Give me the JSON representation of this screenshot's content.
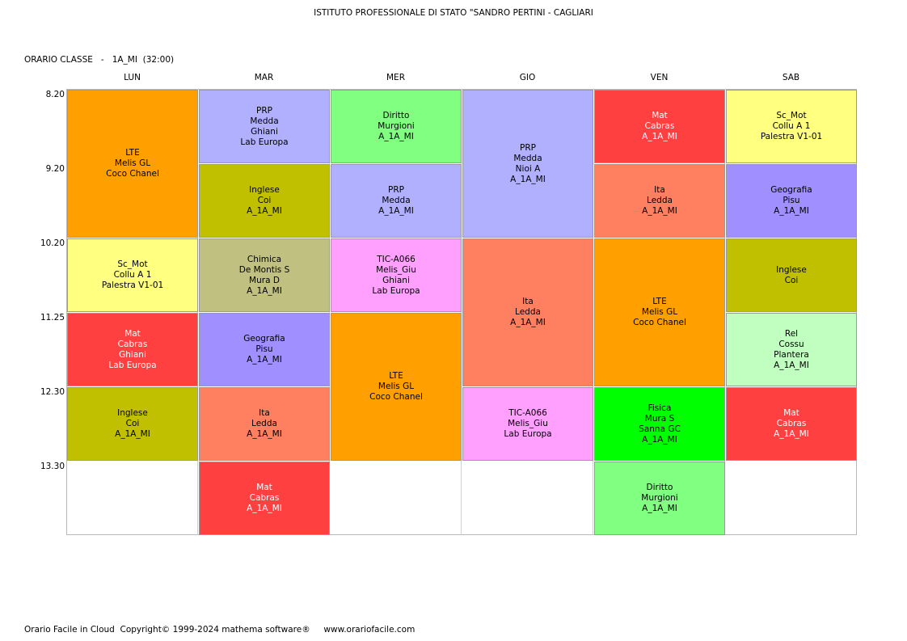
{
  "header": {
    "school": "ISTITUTO PROFESSIONALE DI STATO \"SANDRO PERTINI - CAGLIARI",
    "class_label": "ORARIO CLASSE   -   1A_MI  (32:00)"
  },
  "days": [
    "LUN",
    "MAR",
    "MER",
    "GIO",
    "VEN",
    "SAB"
  ],
  "times": [
    "8.20",
    "9.20",
    "10.20",
    "11.25",
    "12.30",
    "13.30"
  ],
  "colors": {
    "orange": "#ffa000",
    "lavender": "#b0b0ff",
    "green_light": "#80ff80",
    "red": "#ff4040",
    "yellow": "#ffff80",
    "olive": "#c0c000",
    "salmon": "#ff8060",
    "purple": "#9f8fff",
    "khaki": "#c0c080",
    "pink": "#ffa0ff",
    "mint": "#c0ffc0",
    "green_bright": "#00ff00"
  },
  "lessons": [
    {
      "day": 0,
      "slot": 0,
      "span": 2,
      "color": "orange",
      "lines": [
        "LTE",
        "Melis GL",
        "Coco Chanel"
      ]
    },
    {
      "day": 0,
      "slot": 2,
      "span": 1,
      "color": "yellow",
      "lines": [
        "Sc_Mot",
        "Collu A 1",
        "Palestra V1-01"
      ]
    },
    {
      "day": 0,
      "slot": 3,
      "span": 1,
      "color": "red",
      "lines": [
        "Mat",
        "Cabras",
        "Ghiani",
        "Lab Europa"
      ],
      "white_text": true
    },
    {
      "day": 0,
      "slot": 4,
      "span": 1,
      "color": "olive",
      "lines": [
        "Inglese",
        "Coi",
        "A_1A_MI"
      ]
    },
    {
      "day": 1,
      "slot": 0,
      "span": 1,
      "color": "lavender",
      "lines": [
        "PRP",
        "Medda",
        "Ghiani",
        "Lab Europa"
      ]
    },
    {
      "day": 1,
      "slot": 1,
      "span": 1,
      "color": "olive",
      "lines": [
        "Inglese",
        "Coi",
        "A_1A_MI"
      ]
    },
    {
      "day": 1,
      "slot": 2,
      "span": 1,
      "color": "khaki",
      "lines": [
        "Chimica",
        "De Montis S",
        "Mura D",
        "A_1A_MI"
      ]
    },
    {
      "day": 1,
      "slot": 3,
      "span": 1,
      "color": "purple",
      "lines": [
        "Geografia",
        "Pisu",
        "A_1A_MI"
      ]
    },
    {
      "day": 1,
      "slot": 4,
      "span": 1,
      "color": "salmon",
      "lines": [
        "Ita",
        "Ledda",
        "A_1A_MI"
      ]
    },
    {
      "day": 1,
      "slot": 5,
      "span": 1,
      "color": "red",
      "lines": [
        "Mat",
        "Cabras",
        "A_1A_MI"
      ],
      "white_text": true
    },
    {
      "day": 2,
      "slot": 0,
      "span": 1,
      "color": "green_light",
      "lines": [
        "Diritto",
        "Murgioni",
        "A_1A_MI"
      ]
    },
    {
      "day": 2,
      "slot": 1,
      "span": 1,
      "color": "lavender",
      "lines": [
        "PRP",
        "Medda",
        "A_1A_MI"
      ]
    },
    {
      "day": 2,
      "slot": 2,
      "span": 1,
      "color": "pink",
      "lines": [
        "TIC-A066",
        "Melis_Giu",
        "Ghiani",
        "Lab Europa"
      ]
    },
    {
      "day": 2,
      "slot": 3,
      "span": 2,
      "color": "orange",
      "lines": [
        "LTE",
        "Melis GL",
        "Coco Chanel"
      ]
    },
    {
      "day": 3,
      "slot": 0,
      "span": 2,
      "color": "lavender",
      "lines": [
        "PRP",
        "Medda",
        "Nioi A",
        "A_1A_MI"
      ]
    },
    {
      "day": 3,
      "slot": 2,
      "span": 2,
      "color": "salmon",
      "lines": [
        "Ita",
        "Ledda",
        "A_1A_MI"
      ]
    },
    {
      "day": 3,
      "slot": 4,
      "span": 1,
      "color": "pink",
      "lines": [
        "TIC-A066",
        "Melis_Giu",
        "Lab Europa"
      ]
    },
    {
      "day": 4,
      "slot": 0,
      "span": 1,
      "color": "red",
      "lines": [
        "Mat",
        "Cabras",
        "A_1A_MI"
      ],
      "white_text": true
    },
    {
      "day": 4,
      "slot": 1,
      "span": 1,
      "color": "salmon",
      "lines": [
        "Ita",
        "Ledda",
        "A_1A_MI"
      ]
    },
    {
      "day": 4,
      "slot": 2,
      "span": 2,
      "color": "orange",
      "lines": [
        "LTE",
        "Melis GL",
        "Coco Chanel"
      ]
    },
    {
      "day": 4,
      "slot": 4,
      "span": 1,
      "color": "green_bright",
      "lines": [
        "Fisica",
        "Mura S",
        "Sanna GC",
        "A_1A_MI"
      ]
    },
    {
      "day": 4,
      "slot": 5,
      "span": 1,
      "color": "green_light",
      "lines": [
        "Diritto",
        "Murgioni",
        "A_1A_MI"
      ]
    },
    {
      "day": 5,
      "slot": 0,
      "span": 1,
      "color": "yellow",
      "lines": [
        "Sc_Mot",
        "Collu A 1",
        "Palestra V1-01"
      ]
    },
    {
      "day": 5,
      "slot": 1,
      "span": 1,
      "color": "purple",
      "lines": [
        "Geografia",
        "Pisu",
        "A_1A_MI"
      ]
    },
    {
      "day": 5,
      "slot": 2,
      "span": 1,
      "color": "olive",
      "lines": [
        "Inglese",
        "Coi"
      ]
    },
    {
      "day": 5,
      "slot": 3,
      "span": 1,
      "color": "mint",
      "lines": [
        "Rel",
        "Cossu",
        "Plantera",
        "A_1A_MI"
      ]
    },
    {
      "day": 5,
      "slot": 4,
      "span": 1,
      "color": "red",
      "lines": [
        "Mat",
        "Cabras",
        "A_1A_MI"
      ],
      "white_text": true
    }
  ],
  "footer": "Orario Facile in Cloud  Copyright© 1999-2024 mathema software®     www.orariofacile.com"
}
